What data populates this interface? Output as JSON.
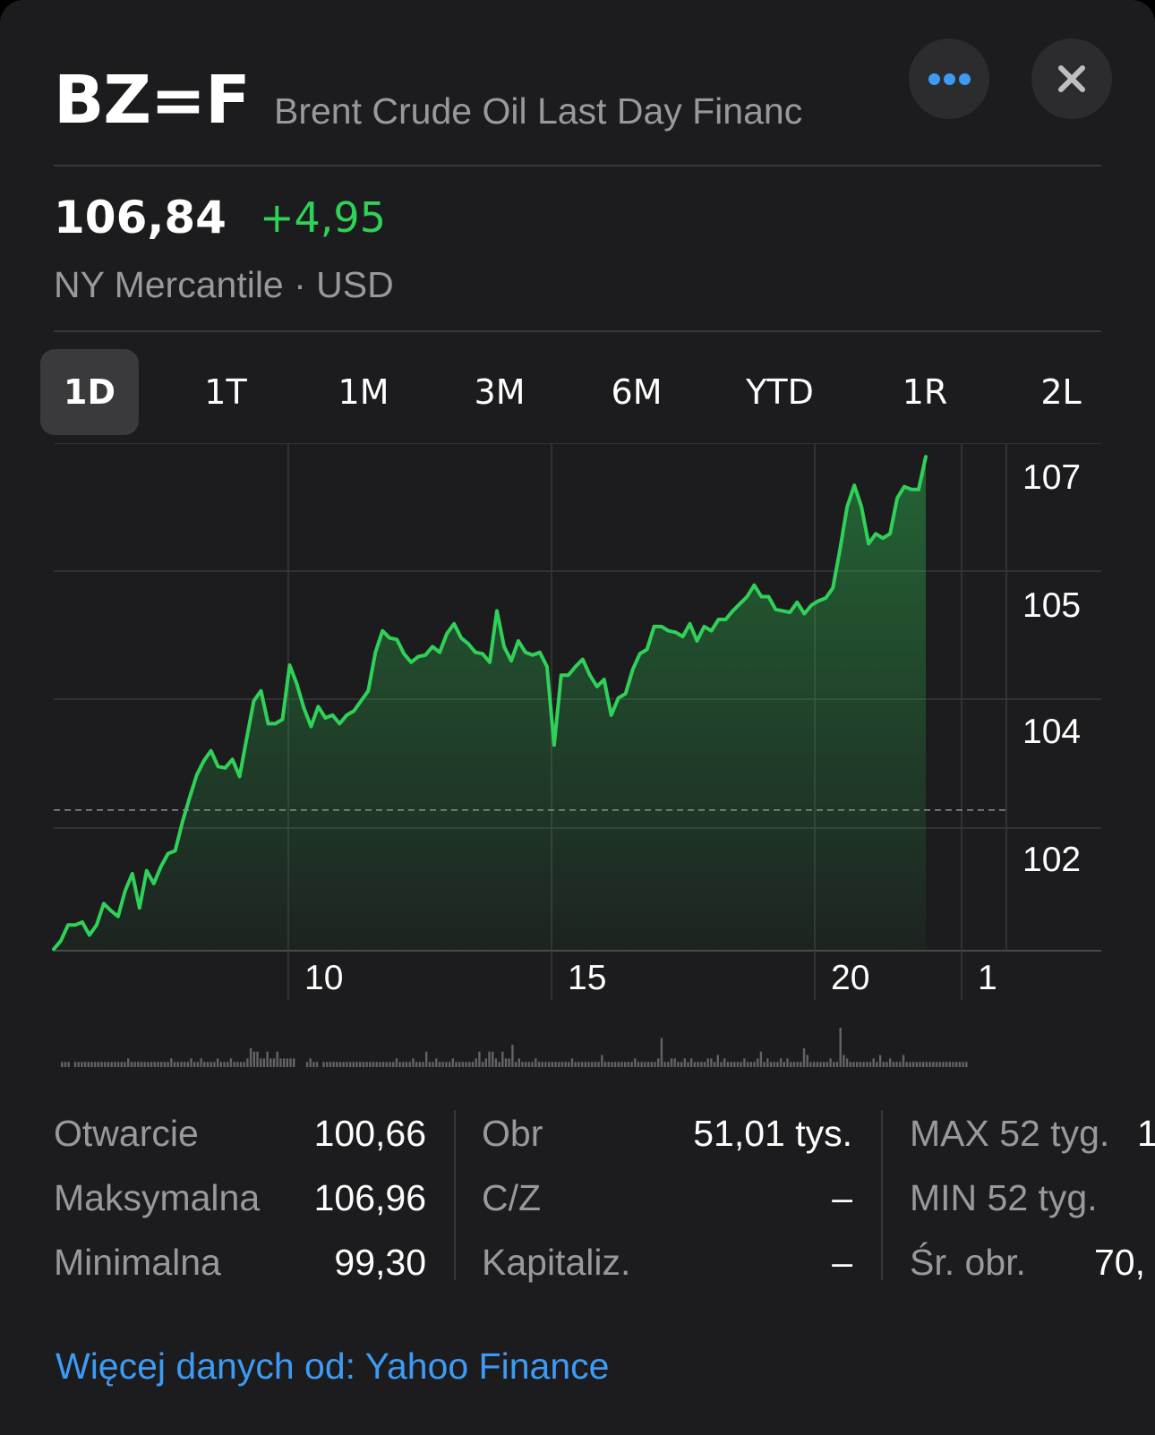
{
  "header": {
    "ticker": "BZ=F",
    "company_name": "Brent Crude Oil Last Day Financ",
    "more_icon": "ellipsis-icon",
    "close_icon": "close-icon",
    "accent_color": "#3d9bf5"
  },
  "quote": {
    "price": "106,84",
    "change": "+4,95",
    "change_color": "#30d158",
    "exchange_currency": "NY Mercantile · USD"
  },
  "ranges": {
    "selected": "1D",
    "items": [
      "1D",
      "1T",
      "1M",
      "3M",
      "6M",
      "YTD",
      "1R",
      "2L"
    ]
  },
  "chart_data": {
    "type": "area",
    "series": [
      {
        "values": [
          99.94,
          100.06,
          100.28,
          100.28,
          100.32,
          100.14,
          100.28,
          100.58,
          100.48,
          100.4,
          100.76,
          101.0,
          100.52,
          101.04,
          100.86,
          101.1,
          101.28,
          101.32,
          101.72,
          102.06,
          102.38,
          102.58,
          102.72,
          102.5,
          102.48,
          102.6,
          102.36,
          102.9,
          103.42,
          103.56,
          103.1,
          103.1,
          103.16,
          103.92,
          103.66,
          103.32,
          103.06,
          103.34,
          103.18,
          103.22,
          103.1,
          103.22,
          103.28,
          103.42,
          103.56,
          104.1,
          104.4,
          104.3,
          104.28,
          104.08,
          103.96,
          104.04,
          104.06,
          104.18,
          104.1,
          104.36,
          104.5,
          104.3,
          104.22,
          104.1,
          104.08,
          103.96,
          104.68,
          104.18,
          103.98,
          104.26,
          104.1,
          104.06,
          104.1,
          103.9,
          102.8,
          103.78,
          103.78,
          103.9,
          104.0,
          103.78,
          103.62,
          103.72,
          103.22,
          103.46,
          103.52,
          103.86,
          104.08,
          104.14,
          104.46,
          104.46,
          104.4,
          104.38,
          104.32,
          104.5,
          104.26,
          104.46,
          104.4,
          104.56,
          104.56,
          104.68,
          104.78,
          104.88,
          105.04,
          104.88,
          104.88,
          104.7,
          104.68,
          104.66,
          104.8,
          104.64,
          104.76,
          104.82,
          104.86,
          105.0,
          105.54,
          106.14,
          106.44,
          106.14,
          105.62,
          105.76,
          105.7,
          105.76,
          106.26,
          106.42,
          106.38,
          106.38,
          106.84
        ]
      }
    ],
    "y_ticks": [
      "107",
      "105",
      "104",
      "102"
    ],
    "x_ticks": [
      "10",
      "15",
      "20",
      "1"
    ],
    "previous_close": 101.89,
    "ylim": [
      99.92,
      107.03
    ],
    "grid": true,
    "line_color": "#30d158",
    "volume": [
      1,
      1,
      1,
      0,
      1,
      1,
      1,
      1,
      1,
      1,
      1,
      1,
      1,
      1,
      1,
      1,
      1,
      1,
      1,
      1,
      2,
      1,
      1,
      1,
      1,
      1,
      1,
      1,
      1,
      1,
      1,
      1,
      1,
      2,
      1,
      1,
      1,
      1,
      1,
      2,
      1,
      1,
      2,
      1,
      1,
      1,
      1,
      2,
      1,
      1,
      1,
      2,
      1,
      1,
      1,
      1,
      2,
      5,
      4,
      4,
      2,
      2,
      4,
      2,
      2,
      4,
      2,
      2,
      2,
      2,
      2,
      0,
      0,
      0,
      1,
      2,
      1,
      1,
      0,
      1,
      1,
      1,
      1,
      1,
      1,
      1,
      1,
      1,
      1,
      1,
      1,
      1,
      1,
      1,
      1,
      1,
      1,
      1,
      1,
      1,
      1,
      2,
      1,
      1,
      1,
      1,
      2,
      1,
      1,
      1,
      4,
      1,
      1,
      2,
      1,
      1,
      1,
      1,
      2,
      1,
      1,
      1,
      1,
      1,
      1,
      2,
      4,
      1,
      2,
      4,
      4,
      2,
      1,
      4,
      2,
      2,
      6,
      1,
      2,
      1,
      1,
      1,
      1,
      2,
      1,
      1,
      1,
      1,
      1,
      1,
      1,
      1,
      1,
      1,
      2,
      1,
      1,
      1,
      1,
      1,
      1,
      1,
      1,
      3,
      1,
      1,
      1,
      1,
      1,
      1,
      1,
      1,
      1,
      2,
      1,
      1,
      1,
      1,
      1,
      1,
      2,
      8,
      1,
      1,
      2,
      2,
      1,
      1,
      2,
      1,
      2,
      1,
      1,
      1,
      1,
      2,
      2,
      1,
      3,
      1,
      2,
      1,
      1,
      1,
      1,
      1,
      2,
      1,
      1,
      1,
      2,
      4,
      1,
      2,
      1,
      1,
      1,
      2,
      1,
      2,
      1,
      1,
      1,
      1,
      5,
      3,
      1,
      1,
      1,
      1,
      1,
      1,
      2,
      1,
      1,
      11,
      3,
      2,
      1,
      1,
      1,
      1,
      1,
      1,
      1,
      2,
      1,
      3,
      1,
      1,
      2,
      1,
      1,
      1,
      3,
      1,
      1,
      1,
      1,
      1,
      1,
      1,
      1,
      1,
      1,
      1,
      1,
      1,
      1,
      1,
      1,
      1,
      1,
      1
    ]
  },
  "stats": {
    "col1": [
      {
        "label": "Otwarcie",
        "value": "100,66"
      },
      {
        "label": "Maksymalna",
        "value": "106,96"
      },
      {
        "label": "Minimalna",
        "value": "99,30"
      }
    ],
    "col2": [
      {
        "label": "Obr",
        "value": "51,01 tys."
      },
      {
        "label": "C/Z",
        "value": "–"
      },
      {
        "label": "Kapitaliz.",
        "value": "–"
      }
    ],
    "col3": [
      {
        "label": "MAX 52 tyg.",
        "value": "1"
      },
      {
        "label": "MIN 52 tyg.",
        "value": ""
      },
      {
        "label": "Śr. obr.",
        "value": "70,"
      }
    ]
  },
  "footer": {
    "more_data_link": "Więcej danych od: Yahoo Finance"
  }
}
